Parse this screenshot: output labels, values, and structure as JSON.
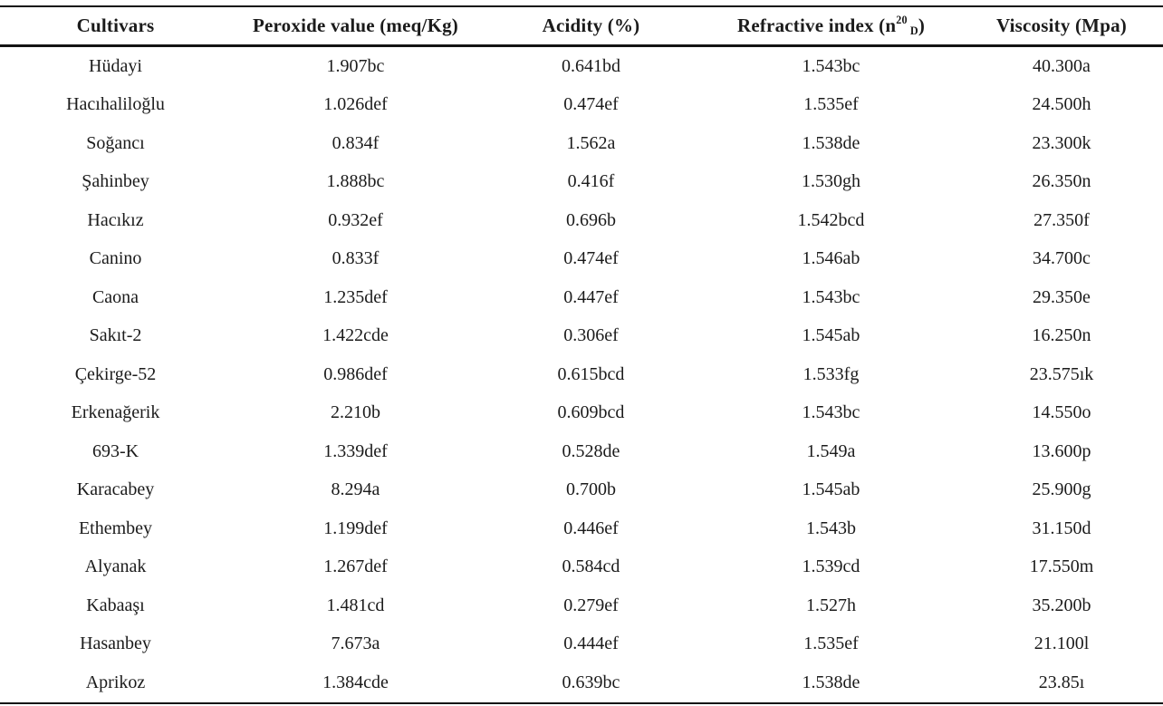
{
  "page": {
    "background_color": "#ffffff",
    "text_color": "#1b1b1b",
    "rule_color": "#141414"
  },
  "table": {
    "headers": {
      "cultivars": "Cultivars",
      "peroxide": "Peroxide value (meq/Kg)",
      "acidity": "Acidity (%)",
      "refractive": {
        "prefix": "Refractive index (n",
        "sup": "20",
        "sub": "D",
        "suffix": ")"
      },
      "viscosity": "Viscosity (Mpa)"
    },
    "row_fields": [
      "cultivar",
      "peroxide",
      "acidity",
      "refractive",
      "viscosity"
    ],
    "rows": [
      {
        "cultivar": "Hüdayi",
        "peroxide": "1.907bc",
        "acidity": "0.641bd",
        "refractive": "1.543bc",
        "viscosity": "40.300a"
      },
      {
        "cultivar": "Hacıhaliloğlu",
        "peroxide": "1.026def",
        "acidity": "0.474ef",
        "refractive": "1.535ef",
        "viscosity": "24.500h"
      },
      {
        "cultivar": "Soğancı",
        "peroxide": "0.834f",
        "acidity": "1.562a",
        "refractive": "1.538de",
        "viscosity": "23.300k"
      },
      {
        "cultivar": "Şahinbey",
        "peroxide": "1.888bc",
        "acidity": "0.416f",
        "refractive": "1.530gh",
        "viscosity": "26.350n"
      },
      {
        "cultivar": "Hacıkız",
        "peroxide": "0.932ef",
        "acidity": "0.696b",
        "refractive": "1.542bcd",
        "viscosity": "27.350f"
      },
      {
        "cultivar": "Canino",
        "peroxide": "0.833f",
        "acidity": "0.474ef",
        "refractive": "1.546ab",
        "viscosity": "34.700c"
      },
      {
        "cultivar": "Caona",
        "peroxide": "1.235def",
        "acidity": "0.447ef",
        "refractive": "1.543bc",
        "viscosity": "29.350e"
      },
      {
        "cultivar": "Sakıt-2",
        "peroxide": "1.422cde",
        "acidity": "0.306ef",
        "refractive": "1.545ab",
        "viscosity": "16.250n"
      },
      {
        "cultivar": "Çekirge-52",
        "peroxide": "0.986def",
        "acidity": "0.615bcd",
        "refractive": "1.533fg",
        "viscosity": "23.575ık"
      },
      {
        "cultivar": "Erkenağerik",
        "peroxide": "2.210b",
        "acidity": "0.609bcd",
        "refractive": "1.543bc",
        "viscosity": "14.550o"
      },
      {
        "cultivar": "693-K",
        "peroxide": "1.339def",
        "acidity": "0.528de",
        "refractive": "1.549a",
        "viscosity": "13.600p"
      },
      {
        "cultivar": "Karacabey",
        "peroxide": "8.294a",
        "acidity": "0.700b",
        "refractive": "1.545ab",
        "viscosity": "25.900g"
      },
      {
        "cultivar": "Ethembey",
        "peroxide": "1.199def",
        "acidity": "0.446ef",
        "refractive": "1.543b",
        "viscosity": "31.150d"
      },
      {
        "cultivar": "Alyanak",
        "peroxide": "1.267def",
        "acidity": "0.584cd",
        "refractive": "1.539cd",
        "viscosity": "17.550m"
      },
      {
        "cultivar": "Kabaaşı",
        "peroxide": "1.481cd",
        "acidity": "0.279ef",
        "refractive": "1.527h",
        "viscosity": "35.200b"
      },
      {
        "cultivar": "Hasanbey",
        "peroxide": "7.673a",
        "acidity": "0.444ef",
        "refractive": "1.535ef",
        "viscosity": "21.100l"
      },
      {
        "cultivar": "Aprikoz",
        "peroxide": "1.384cde",
        "acidity": "0.639bc",
        "refractive": "1.538de",
        "viscosity": "23.85ı"
      }
    ]
  }
}
